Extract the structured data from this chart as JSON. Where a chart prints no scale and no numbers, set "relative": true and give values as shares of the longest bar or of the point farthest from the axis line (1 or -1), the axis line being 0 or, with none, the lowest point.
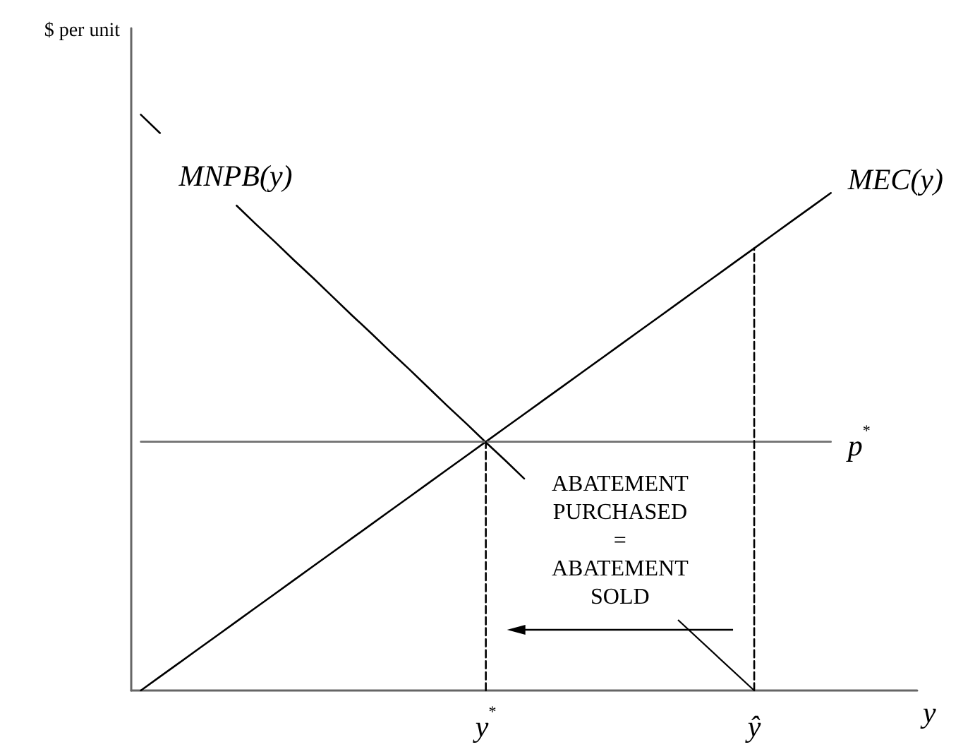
{
  "chart_data": {
    "type": "line",
    "relative": true,
    "xlabel": "y",
    "ylabel": "$ per unit",
    "tick_labels": "x",
    "marker": "none",
    "line_style": "solid",
    "categories": [
      null,
      null,
      null,
      null,
      null,
      null,
      null,
      null,
      null,
      null,
      null,
      null,
      null,
      null,
      null,
      null,
      null,
      null,
      "y$^{*}$",
      null,
      null,
      null,
      null,
      null,
      null,
      null,
      null,
      null,
      null,
      null,
      null,
      null,
      "ŷ",
      null,
      null,
      null,
      null,
      null,
      null,
      null,
      null
    ],
    "series": [
      {
        "name": "MNPB(y)",
        "color": "#000000",
        "values": [
          1,
          0.968,
          null,
          null,
          null,
          0.842,
          0.81,
          0.779,
          0.747,
          0.716,
          0.684,
          0.652,
          0.621,
          0.589,
          0.558,
          0.526,
          0.494,
          0.463,
          0.431,
          0.4,
          0.368,
          null,
          null,
          null,
          null,
          null,
          null,
          null,
          null,
          null,
          null,
          null,
          null,
          null,
          null,
          null,
          null,
          null,
          null,
          null,
          null
        ]
      },
      {
        "name": "MEC(y)",
        "color": "#000000",
        "values": [
          0,
          0.024,
          0.048,
          0.072,
          0.096,
          0.12,
          0.144,
          0.168,
          0.192,
          0.216,
          0.24,
          0.264,
          0.288,
          0.312,
          0.336,
          0.36,
          0.384,
          0.408,
          0.432,
          0.456,
          0.48,
          0.504,
          0.528,
          0.552,
          0.576,
          0.6,
          0.624,
          0.648,
          0.672,
          0.696,
          0.72,
          0.744,
          0.768,
          0.792,
          0.816,
          0.84,
          0.864,
          null,
          null,
          null,
          null
        ]
      },
      {
        "name": "p$^{*}$",
        "color": "#707070",
        "values": [
          0.432,
          0.432,
          0.432,
          0.432,
          0.432,
          0.432,
          0.432,
          0.432,
          0.432,
          0.432,
          0.432,
          0.432,
          0.432,
          0.432,
          0.432,
          0.432,
          0.432,
          0.432,
          0.432,
          0.432,
          0.432,
          0.432,
          0.432,
          0.432,
          0.432,
          0.432,
          0.432,
          0.432,
          0.432,
          0.432,
          0.432,
          0.432,
          0.432,
          0.432,
          0.432,
          0.432,
          0.432,
          null,
          null,
          null,
          null
        ]
      },
      {
        "color": "#000000",
        "x": [
          "y$^{*}$",
          "y$^{*}$"
        ],
        "values": [
          0,
          0.432
        ],
        "line_style": "dashed"
      },
      {
        "color": "#000000",
        "x": [
          "ŷ",
          "ŷ"
        ],
        "values": [
          0,
          0.768
        ],
        "line_style": "dashed"
      }
    ],
    "annotations": [
      "ABATEMENT\nPURCHASED\n=\nABATEMENT\nSOLD"
    ]
  }
}
